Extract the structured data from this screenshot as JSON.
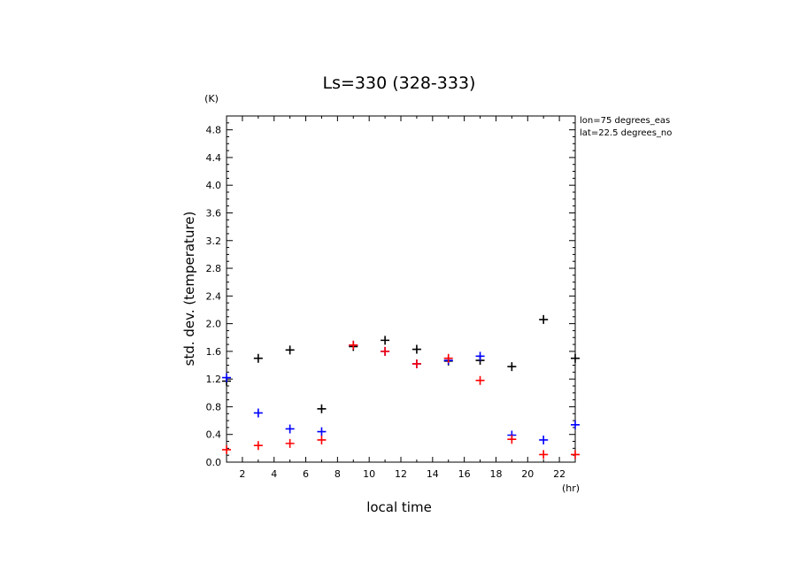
{
  "chart_data": {
    "type": "scatter",
    "title": "Ls=330 (328-333)",
    "xlabel": "local time",
    "ylabel": "std. dev. (temperature)",
    "x_unit": "(hr)",
    "y_unit": "(K)",
    "xlim": [
      1,
      23
    ],
    "ylim": [
      0,
      5
    ],
    "x_ticks": [
      "2",
      "4",
      "6",
      "8",
      "10",
      "12",
      "14",
      "16",
      "18",
      "20",
      "22"
    ],
    "y_ticks": [
      "0.0",
      "0.4",
      "0.8",
      "1.2",
      "1.6",
      "2.0",
      "2.4",
      "2.8",
      "3.2",
      "3.6",
      "4.0",
      "4.4",
      "4.8"
    ],
    "annotations": [
      "lon=75 degrees_eas",
      "lat=22.5 degrees_no"
    ],
    "series": [
      {
        "color": "#000000",
        "points": [
          [
            1,
            1.17
          ],
          [
            3,
            1.5
          ],
          [
            5,
            1.62
          ],
          [
            7,
            0.77
          ],
          [
            9,
            1.67
          ],
          [
            11,
            1.76
          ],
          [
            13,
            1.63
          ],
          [
            15,
            1.46
          ],
          [
            17,
            1.47
          ],
          [
            19,
            1.38
          ],
          [
            21,
            2.06
          ],
          [
            23,
            1.5
          ]
        ]
      },
      {
        "color": "#0000ff",
        "points": [
          [
            1,
            1.22
          ],
          [
            3,
            0.71
          ],
          [
            5,
            0.48
          ],
          [
            7,
            0.44
          ],
          [
            9,
            1.69
          ],
          [
            11,
            1.6
          ],
          [
            13,
            1.42
          ],
          [
            15,
            1.47
          ],
          [
            17,
            1.53
          ],
          [
            19,
            0.39
          ],
          [
            21,
            0.32
          ],
          [
            23,
            0.54
          ]
        ]
      },
      {
        "color": "#ff0000",
        "points": [
          [
            1,
            0.18
          ],
          [
            3,
            0.24
          ],
          [
            5,
            0.27
          ],
          [
            7,
            0.32
          ],
          [
            9,
            1.69
          ],
          [
            11,
            1.6
          ],
          [
            13,
            1.42
          ],
          [
            15,
            1.5
          ],
          [
            17,
            1.18
          ],
          [
            19,
            0.33
          ],
          [
            21,
            0.11
          ],
          [
            23,
            0.11
          ]
        ]
      }
    ]
  }
}
